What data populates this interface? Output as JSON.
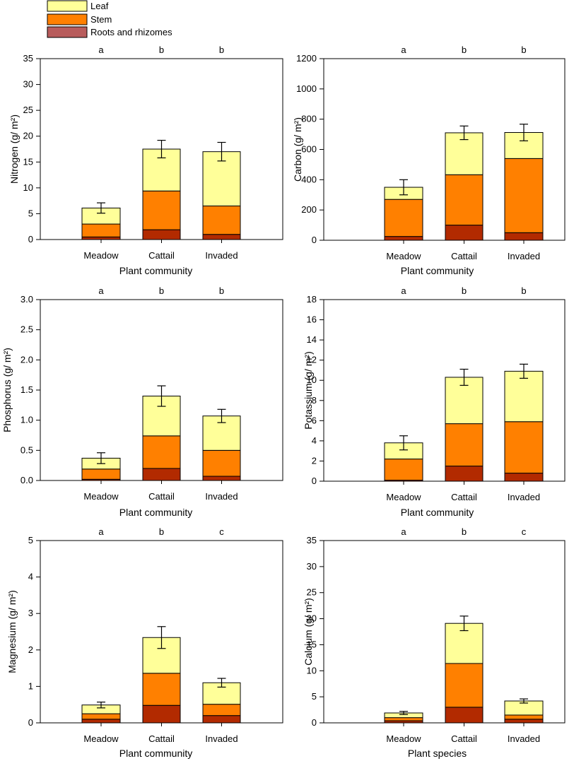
{
  "colors": {
    "leaf": "#FFFF99",
    "stem": "#FF8000",
    "roots": "#B22A00",
    "roots_legend": "#B85C5C",
    "axis": "#000000"
  },
  "legend": {
    "items": [
      {
        "key": "leaf",
        "label": "Leaf"
      },
      {
        "key": "stem",
        "label": "Stem"
      },
      {
        "key": "roots",
        "label": "Roots and rhizomes"
      }
    ]
  },
  "chart_data": [
    {
      "type": "bar",
      "stacked": true,
      "title": "",
      "xlabel": "Plant community",
      "ylabel": "Nitrogen (g/ m²)",
      "categories": [
        "Meadow",
        "Cattail",
        "Invaded"
      ],
      "significance": [
        "a",
        "b",
        "b"
      ],
      "ylim": [
        0,
        35
      ],
      "yticks": [
        0,
        5,
        10,
        15,
        20,
        25,
        30,
        35
      ],
      "series": [
        {
          "name": "Roots and rhizomes",
          "key": "roots",
          "values": [
            0.5,
            1.9,
            1.0
          ]
        },
        {
          "name": "Stem",
          "key": "stem",
          "values": [
            2.5,
            7.5,
            5.5
          ]
        },
        {
          "name": "Leaf",
          "key": "leaf",
          "values": [
            3.1,
            8.1,
            10.5
          ]
        }
      ],
      "error": [
        1.0,
        1.7,
        1.8
      ]
    },
    {
      "type": "bar",
      "stacked": true,
      "title": "",
      "xlabel": "Plant community",
      "ylabel": "Carbon (g/ m²)",
      "categories": [
        "Meadow",
        "Cattail",
        "Invaded"
      ],
      "significance": [
        "a",
        "b",
        "b"
      ],
      "ylim": [
        0,
        1200
      ],
      "yticks": [
        0,
        200,
        400,
        600,
        800,
        1000,
        1200
      ],
      "series": [
        {
          "name": "Roots and rhizomes",
          "key": "roots",
          "values": [
            25,
            100,
            50
          ]
        },
        {
          "name": "Stem",
          "key": "stem",
          "values": [
            245,
            333,
            490
          ]
        },
        {
          "name": "Leaf",
          "key": "leaf",
          "values": [
            80,
            277,
            172
          ]
        }
      ],
      "error": [
        50,
        45,
        55
      ]
    },
    {
      "type": "bar",
      "stacked": true,
      "title": "",
      "xlabel": "Plant community",
      "ylabel": "Phosphorus (g/ m²)",
      "categories": [
        "Meadow",
        "Cattail",
        "Invaded"
      ],
      "significance": [
        "a",
        "b",
        "b"
      ],
      "ylim": [
        0,
        3.0
      ],
      "yticks": [
        "0.0",
        "0.5",
        "1.0",
        "1.5",
        "2.0",
        "2.5",
        "3.0"
      ],
      "series": [
        {
          "name": "Roots and rhizomes",
          "key": "roots",
          "values": [
            0.02,
            0.2,
            0.07
          ]
        },
        {
          "name": "Stem",
          "key": "stem",
          "values": [
            0.17,
            0.54,
            0.43
          ]
        },
        {
          "name": "Leaf",
          "key": "leaf",
          "values": [
            0.18,
            0.66,
            0.57
          ]
        }
      ],
      "error": [
        0.09,
        0.17,
        0.11
      ]
    },
    {
      "type": "bar",
      "stacked": true,
      "title": "",
      "xlabel": "Plant community",
      "ylabel": "Potassium (g/ m²)",
      "categories": [
        "Meadow",
        "Cattail",
        "Invaded"
      ],
      "significance": [
        "a",
        "b",
        "b"
      ],
      "ylim": [
        0,
        18
      ],
      "yticks": [
        0,
        2,
        4,
        6,
        8,
        10,
        12,
        14,
        16,
        18
      ],
      "series": [
        {
          "name": "Roots and rhizomes",
          "key": "roots",
          "values": [
            0.1,
            1.5,
            0.8
          ]
        },
        {
          "name": "Stem",
          "key": "stem",
          "values": [
            2.1,
            4.2,
            5.1
          ]
        },
        {
          "name": "Leaf",
          "key": "leaf",
          "values": [
            1.6,
            4.6,
            5.0
          ]
        }
      ],
      "error": [
        0.7,
        0.8,
        0.7
      ]
    },
    {
      "type": "bar",
      "stacked": true,
      "title": "",
      "xlabel": "Plant community",
      "ylabel": "Magnesium (g/ m²)",
      "categories": [
        "Meadow",
        "Cattail",
        "Invaded"
      ],
      "significance": [
        "a",
        "b",
        "c"
      ],
      "ylim": [
        0,
        5
      ],
      "yticks": [
        0,
        1,
        2,
        3,
        4,
        5
      ],
      "series": [
        {
          "name": "Roots and rhizomes",
          "key": "roots",
          "values": [
            0.1,
            0.48,
            0.2
          ]
        },
        {
          "name": "Stem",
          "key": "stem",
          "values": [
            0.15,
            0.88,
            0.31
          ]
        },
        {
          "name": "Leaf",
          "key": "leaf",
          "values": [
            0.24,
            0.98,
            0.59
          ]
        }
      ],
      "error": [
        0.08,
        0.3,
        0.12
      ]
    },
    {
      "type": "bar",
      "stacked": true,
      "title": "",
      "xlabel": "Plant species",
      "ylabel": "Calcium (g/ m²)",
      "categories": [
        "Meadow",
        "Cattail",
        "Invaded"
      ],
      "significance": [
        "a",
        "b",
        "c"
      ],
      "ylim": [
        0,
        35
      ],
      "yticks": [
        0,
        5,
        10,
        15,
        20,
        25,
        30,
        35
      ],
      "series": [
        {
          "name": "Roots and rhizomes",
          "key": "roots",
          "values": [
            0.4,
            3.0,
            0.7
          ]
        },
        {
          "name": "Stem",
          "key": "stem",
          "values": [
            0.6,
            8.4,
            0.8
          ]
        },
        {
          "name": "Leaf",
          "key": "leaf",
          "values": [
            0.9,
            7.7,
            2.7
          ]
        }
      ],
      "error": [
        0.3,
        1.4,
        0.4
      ]
    }
  ]
}
